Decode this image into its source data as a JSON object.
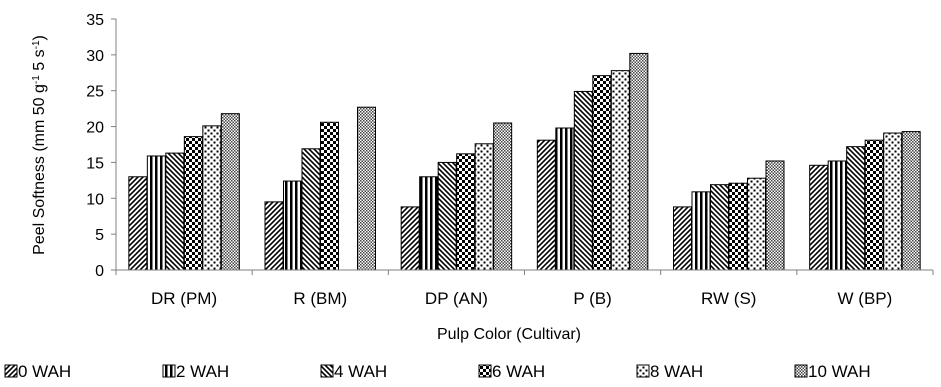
{
  "chart_data": {
    "type": "bar",
    "title": "",
    "xlabel": "Pulp Color (Cultivar)",
    "ylabel": "Peel Softness (mm 50 g",
    "ylabel_sup1": "-1",
    "ylabel_mid": " 5 s",
    "ylabel_sup2": "-1",
    "ylabel_end": ")",
    "ylim": [
      0,
      35
    ],
    "yticks": [
      0,
      5,
      10,
      15,
      20,
      25,
      30,
      35
    ],
    "grid": false,
    "legend_position": "bottom",
    "categories": [
      "DR (PM)",
      "R (BM)",
      "DP (AN)",
      "P (B)",
      "RW (S)",
      "W (BP)"
    ],
    "series": [
      {
        "name": "0 WAH",
        "pattern": "diag-up",
        "values": [
          13.0,
          9.5,
          8.8,
          18.1,
          8.8,
          14.6
        ]
      },
      {
        "name": "2 WAH",
        "pattern": "vertical",
        "values": [
          15.9,
          12.4,
          13.0,
          19.8,
          10.9,
          15.2
        ]
      },
      {
        "name": "4 WAH",
        "pattern": "diag-down",
        "values": [
          16.3,
          16.9,
          15.0,
          24.9,
          11.9,
          17.2
        ]
      },
      {
        "name": "6 WAH",
        "pattern": "checker",
        "values": [
          18.6,
          20.6,
          16.2,
          27.1,
          12.1,
          18.1
        ]
      },
      {
        "name": "8 WAH",
        "pattern": "dots",
        "values": [
          20.1,
          0,
          17.6,
          27.8,
          12.8,
          19.1
        ]
      },
      {
        "name": "10 WAH",
        "pattern": "fine",
        "values": [
          21.8,
          22.7,
          20.5,
          30.2,
          15.2,
          19.3
        ]
      }
    ],
    "colors": {
      "ink": "#000000",
      "background": "#ffffff"
    }
  }
}
